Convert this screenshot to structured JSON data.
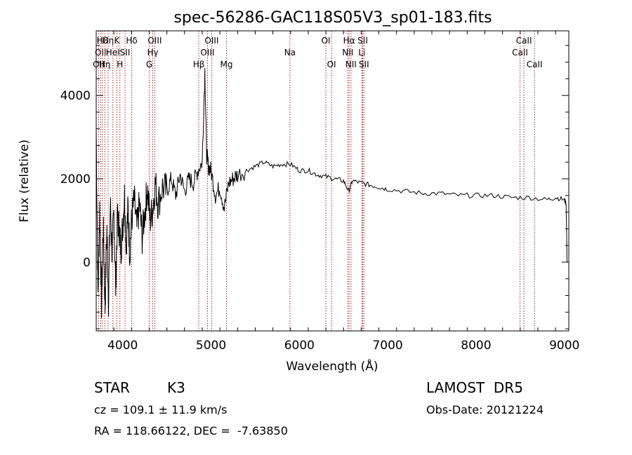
{
  "chart_data": {
    "type": "line",
    "title": "spec-56286-GAC118S05V3_sp01-183.fits",
    "xlabel": "Wavelength (Å)",
    "ylabel": "Flux (relative)",
    "xlim": [
      3700,
      9050
    ],
    "ylim": [
      -1650,
      5550
    ],
    "xticks": [
      4000,
      5000,
      6000,
      7000,
      8000,
      9000
    ],
    "yticks": [
      0,
      2000,
      4000
    ],
    "grid": false,
    "series": [
      {
        "x": [
          3700,
          3720,
          3740,
          3760,
          3780,
          3800,
          3820,
          3840,
          3860,
          3880,
          3900,
          3920,
          3940,
          3960,
          3980,
          4000,
          4020,
          4040,
          4060,
          4080,
          4100,
          4130,
          4160,
          4190,
          4220,
          4250,
          4280,
          4310,
          4340,
          4370,
          4400,
          4450,
          4500,
          4550,
          4600,
          4650,
          4700,
          4750,
          4800,
          4850,
          4900,
          4930,
          4950,
          4970,
          5000,
          5050,
          5100,
          5150,
          5200,
          5250,
          5300,
          5400,
          5500,
          5600,
          5700,
          5800,
          5900,
          6000,
          6100,
          6200,
          6300,
          6400,
          6500,
          6560,
          6600,
          6700,
          6800,
          6900,
          7000,
          7200,
          7400,
          7600,
          7800,
          8000,
          8200,
          8400,
          8600,
          8800,
          8900,
          9000,
          9020,
          9030
        ],
        "y": [
          3200,
          -800,
          1300,
          -1000,
          900,
          -1100,
          800,
          -900,
          1400,
          200,
          1200,
          -600,
          1100,
          800,
          300,
          900,
          1600,
          400,
          1300,
          200,
          1000,
          1500,
          800,
          1400,
          600,
          1200,
          1800,
          1000,
          1300,
          1900,
          1400,
          1800,
          1700,
          2000,
          1600,
          2100,
          1700,
          2000,
          1900,
          2200,
          2400,
          4600,
          2600,
          2300,
          2200,
          1600,
          1800,
          1300,
          1900,
          2000,
          2100,
          2200,
          2300,
          2400,
          2300,
          2350,
          2350,
          2200,
          2200,
          2100,
          2050,
          2000,
          1950,
          1700,
          1950,
          1900,
          1850,
          1800,
          1750,
          1700,
          1650,
          1650,
          1600,
          1600,
          1600,
          1550,
          1550,
          1500,
          1550,
          1500,
          1400,
          0
        ]
      }
    ],
    "lines": [
      {
        "w": 3727,
        "label": "OII",
        "row": 3
      },
      {
        "w": 3750,
        "label": "OII",
        "row": 2
      },
      {
        "w": 3770,
        "label": "Hθ",
        "row": 1
      },
      {
        "w": 3798,
        "label": "Hη",
        "row": 3
      },
      {
        "w": 3835,
        "label": "Hη",
        "row": 1
      },
      {
        "w": 3889,
        "label": "HeI",
        "row": 2
      },
      {
        "w": 3934,
        "label": "K",
        "row": 1
      },
      {
        "w": 3968,
        "label": "H",
        "row": 3
      },
      {
        "w": 4026,
        "label": "SII",
        "row": 2
      },
      {
        "w": 4102,
        "label": "Hδ",
        "row": 1
      },
      {
        "w": 4300,
        "label": "G",
        "row": 3
      },
      {
        "w": 4340,
        "label": "Hγ",
        "row": 2
      },
      {
        "w": 4363,
        "label": "OIII",
        "row": 1
      },
      {
        "w": 4861,
        "label": "Hβ",
        "row": 3
      },
      {
        "w": 4959,
        "label": "OIII",
        "row": 2
      },
      {
        "w": 5007,
        "label": "OIII",
        "row": 1
      },
      {
        "w": 5175,
        "label": "Mg",
        "row": 3
      },
      {
        "w": 5893,
        "label": "Na",
        "row": 2
      },
      {
        "w": 6300,
        "label": "OI",
        "row": 1
      },
      {
        "w": 6364,
        "label": "OI",
        "row": 3
      },
      {
        "w": 6548,
        "label": "NII",
        "row": 2
      },
      {
        "w": 6563,
        "label": "Hα",
        "row": 1
      },
      {
        "w": 6584,
        "label": "NII",
        "row": 3
      },
      {
        "w": 6707,
        "label": "Li",
        "row": 2
      },
      {
        "w": 6717,
        "label": "SII",
        "row": 1
      },
      {
        "w": 6731,
        "label": "SII",
        "row": 3
      },
      {
        "w": 8498,
        "label": "CaII",
        "row": 2
      },
      {
        "w": 8542,
        "label": "CaII",
        "row": 1
      },
      {
        "w": 8662,
        "label": "CaII",
        "row": 3
      }
    ],
    "colors": {
      "line_markers": "#b22222",
      "spectrum": "#000000"
    }
  },
  "info": {
    "class_label": "STAR",
    "subclass": "K3",
    "survey": "LAMOST  DR5",
    "cz_text": "cz = 109.1 ± 11.9 km/s",
    "obs_date": "Obs-Date: 20121224",
    "coords": "RA = 118.66122, DEC =  -7.63850"
  }
}
